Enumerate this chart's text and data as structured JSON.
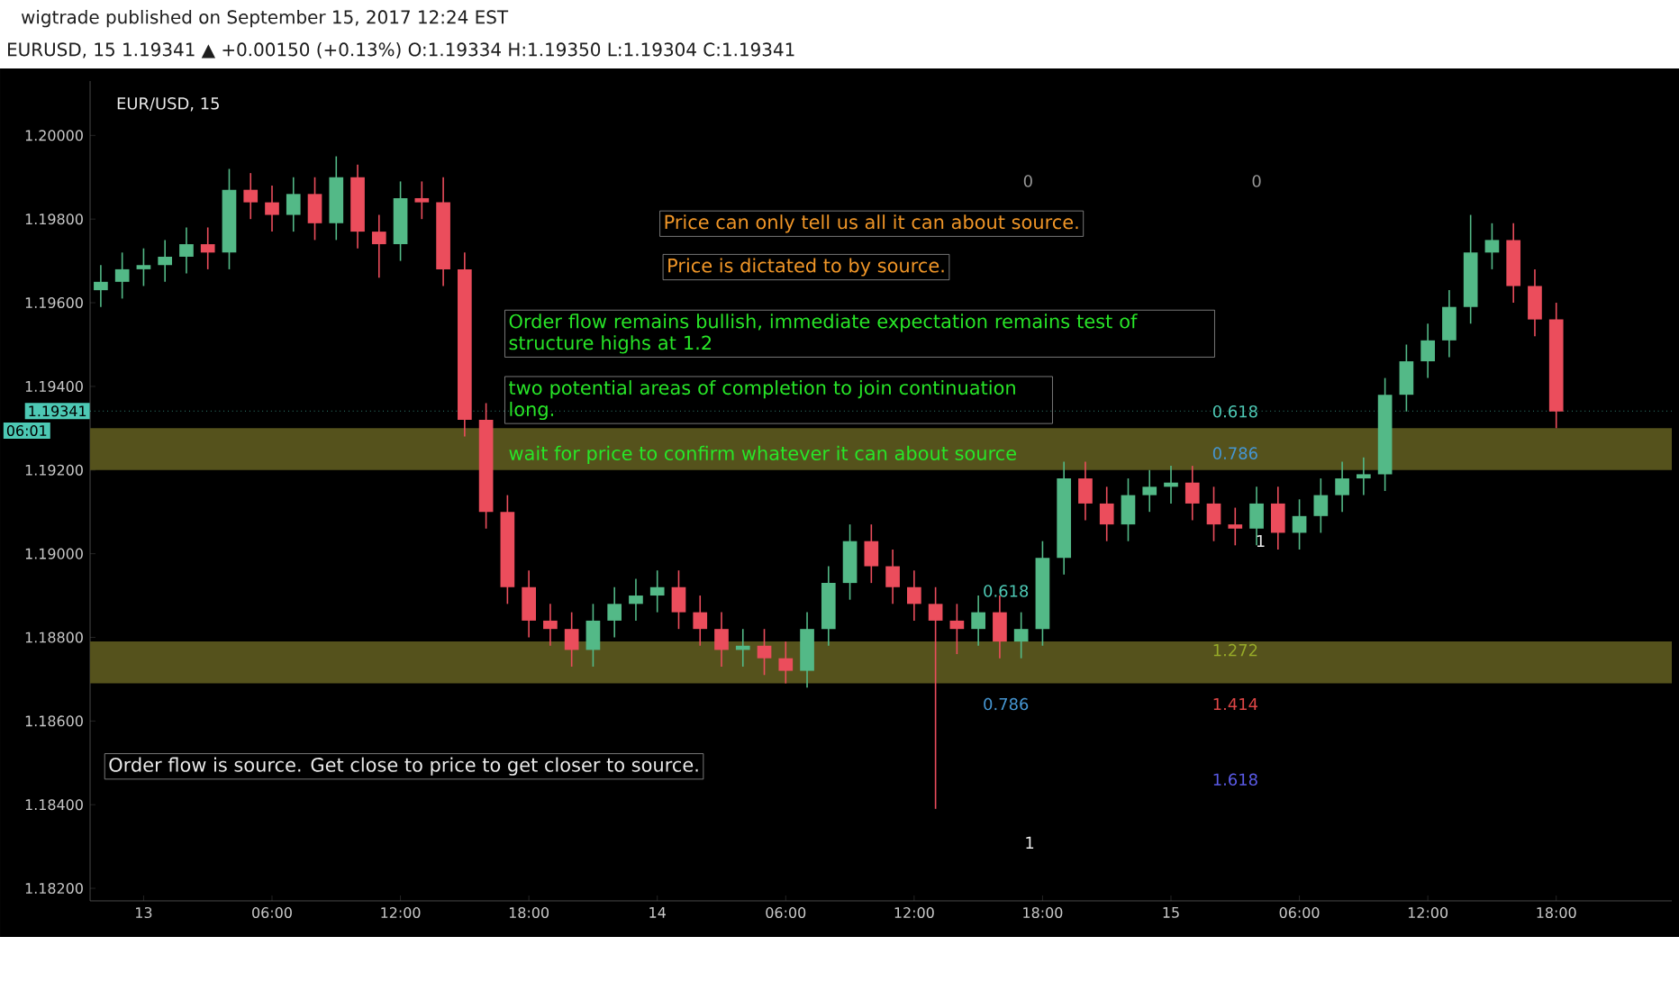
{
  "chart_data": {
    "type": "candlestick",
    "title": "wigtrade published on September 15, 2017 12:24 EST",
    "subtitle": "EURUSD, 15  1.19341 ▲ +0.00150 (+0.13%) O:1.19334 H:1.19350 L:1.19304 C:1.19341",
    "x": [
      "2017-09-12T22:00",
      "2017-09-12T23:00",
      "2017-09-13T00:00",
      "2017-09-13T01:00",
      "2017-09-13T02:00",
      "2017-09-13T03:00",
      "2017-09-13T04:00",
      "2017-09-13T05:00",
      "2017-09-13T06:00",
      "2017-09-13T07:00",
      "2017-09-13T08:00",
      "2017-09-13T09:00",
      "2017-09-13T10:00",
      "2017-09-13T11:00",
      "2017-09-13T12:00",
      "2017-09-13T13:00",
      "2017-09-13T14:00",
      "2017-09-13T15:00",
      "2017-09-13T16:00",
      "2017-09-13T17:00",
      "2017-09-13T18:00",
      "2017-09-13T19:00",
      "2017-09-13T20:00",
      "2017-09-13T21:00",
      "2017-09-13T22:00",
      "2017-09-13T23:00",
      "2017-09-14T00:00",
      "2017-09-14T01:00",
      "2017-09-14T02:00",
      "2017-09-14T03:00",
      "2017-09-14T04:00",
      "2017-09-14T05:00",
      "2017-09-14T06:00",
      "2017-09-14T07:00",
      "2017-09-14T08:00",
      "2017-09-14T09:00",
      "2017-09-14T10:00",
      "2017-09-14T11:00",
      "2017-09-14T12:00",
      "2017-09-14T13:00",
      "2017-09-14T14:00",
      "2017-09-14T15:00",
      "2017-09-14T16:00",
      "2017-09-14T17:00",
      "2017-09-14T18:00",
      "2017-09-14T19:00",
      "2017-09-14T20:00",
      "2017-09-14T21:00",
      "2017-09-14T22:00",
      "2017-09-14T23:00",
      "2017-09-15T00:00",
      "2017-09-15T01:00",
      "2017-09-15T02:00",
      "2017-09-15T03:00",
      "2017-09-15T04:00",
      "2017-09-15T05:00",
      "2017-09-15T06:00",
      "2017-09-15T07:00",
      "2017-09-15T08:00",
      "2017-09-15T09:00",
      "2017-09-15T10:00",
      "2017-09-15T11:00",
      "2017-09-15T12:00",
      "2017-09-15T13:00",
      "2017-09-15T14:00",
      "2017-09-15T15:00",
      "2017-09-15T16:00",
      "2017-09-15T17:00",
      "2017-09-15T18:00"
    ],
    "ohlc": [
      [
        1.1963,
        1.1969,
        1.1959,
        1.1965
      ],
      [
        1.1965,
        1.1972,
        1.1961,
        1.1968
      ],
      [
        1.1968,
        1.1973,
        1.1964,
        1.1969
      ],
      [
        1.1969,
        1.1975,
        1.1965,
        1.1971
      ],
      [
        1.1971,
        1.1978,
        1.1967,
        1.1974
      ],
      [
        1.1974,
        1.1978,
        1.1968,
        1.1972
      ],
      [
        1.1972,
        1.1992,
        1.1968,
        1.1987
      ],
      [
        1.1987,
        1.1991,
        1.198,
        1.1984
      ],
      [
        1.1984,
        1.1988,
        1.1977,
        1.1981
      ],
      [
        1.1981,
        1.199,
        1.1977,
        1.1986
      ],
      [
        1.1986,
        1.199,
        1.1975,
        1.1979
      ],
      [
        1.1979,
        1.1995,
        1.1975,
        1.199
      ],
      [
        1.199,
        1.1993,
        1.1973,
        1.1977
      ],
      [
        1.1977,
        1.1981,
        1.1966,
        1.1974
      ],
      [
        1.1974,
        1.1989,
        1.197,
        1.1985
      ],
      [
        1.1985,
        1.1989,
        1.198,
        1.1984
      ],
      [
        1.1984,
        1.199,
        1.1964,
        1.1968
      ],
      [
        1.1968,
        1.1972,
        1.1928,
        1.1932
      ],
      [
        1.1932,
        1.1936,
        1.1906,
        1.191
      ],
      [
        1.191,
        1.1914,
        1.1888,
        1.1892
      ],
      [
        1.1892,
        1.1896,
        1.188,
        1.1884
      ],
      [
        1.1884,
        1.1888,
        1.1878,
        1.1882
      ],
      [
        1.1882,
        1.1886,
        1.1873,
        1.1877
      ],
      [
        1.1877,
        1.1888,
        1.1873,
        1.1884
      ],
      [
        1.1884,
        1.1892,
        1.188,
        1.1888
      ],
      [
        1.1888,
        1.1894,
        1.1884,
        1.189
      ],
      [
        1.189,
        1.1896,
        1.1886,
        1.1892
      ],
      [
        1.1892,
        1.1896,
        1.1882,
        1.1886
      ],
      [
        1.1886,
        1.189,
        1.1878,
        1.1882
      ],
      [
        1.1882,
        1.1886,
        1.1873,
        1.1877
      ],
      [
        1.1877,
        1.1882,
        1.1873,
        1.1878
      ],
      [
        1.1878,
        1.1882,
        1.1871,
        1.1875
      ],
      [
        1.1875,
        1.1879,
        1.1869,
        1.1872
      ],
      [
        1.1872,
        1.1886,
        1.1868,
        1.1882
      ],
      [
        1.1882,
        1.1897,
        1.1878,
        1.1893
      ],
      [
        1.1893,
        1.1907,
        1.1889,
        1.1903
      ],
      [
        1.1903,
        1.1907,
        1.1893,
        1.1897
      ],
      [
        1.1897,
        1.1901,
        1.1888,
        1.1892
      ],
      [
        1.1892,
        1.1896,
        1.1884,
        1.1888
      ],
      [
        1.1888,
        1.1892,
        1.1839,
        1.1884
      ],
      [
        1.1884,
        1.1888,
        1.1876,
        1.1882
      ],
      [
        1.1882,
        1.189,
        1.1878,
        1.1886
      ],
      [
        1.1886,
        1.189,
        1.1875,
        1.1879
      ],
      [
        1.1879,
        1.1886,
        1.1875,
        1.1882
      ],
      [
        1.1882,
        1.1903,
        1.1878,
        1.1899
      ],
      [
        1.1899,
        1.1922,
        1.1895,
        1.1918
      ],
      [
        1.1918,
        1.1922,
        1.1908,
        1.1912
      ],
      [
        1.1912,
        1.1916,
        1.1903,
        1.1907
      ],
      [
        1.1907,
        1.1918,
        1.1903,
        1.1914
      ],
      [
        1.1914,
        1.192,
        1.191,
        1.1916
      ],
      [
        1.1916,
        1.1921,
        1.1912,
        1.1917
      ],
      [
        1.1917,
        1.1921,
        1.1908,
        1.1912
      ],
      [
        1.1912,
        1.1916,
        1.1903,
        1.1907
      ],
      [
        1.1907,
        1.1911,
        1.1902,
        1.1906
      ],
      [
        1.1906,
        1.1916,
        1.1902,
        1.1912
      ],
      [
        1.1912,
        1.1916,
        1.1901,
        1.1905
      ],
      [
        1.1905,
        1.1913,
        1.1901,
        1.1909
      ],
      [
        1.1909,
        1.1918,
        1.1905,
        1.1914
      ],
      [
        1.1914,
        1.1922,
        1.191,
        1.1918
      ],
      [
        1.1918,
        1.1923,
        1.1914,
        1.1919
      ],
      [
        1.1919,
        1.1942,
        1.1915,
        1.1938
      ],
      [
        1.1938,
        1.195,
        1.1934,
        1.1946
      ],
      [
        1.1946,
        1.1955,
        1.1942,
        1.1951
      ],
      [
        1.1951,
        1.1963,
        1.1947,
        1.1959
      ],
      [
        1.1959,
        1.1981,
        1.1955,
        1.1972
      ],
      [
        1.1972,
        1.1979,
        1.1968,
        1.1975
      ],
      [
        1.1975,
        1.1979,
        1.196,
        1.1964
      ],
      [
        1.1964,
        1.1968,
        1.1952,
        1.1956
      ],
      [
        1.1956,
        1.196,
        1.193,
        1.1934
      ]
    ],
    "xlim": [
      "2017-09-12T21:30",
      "2017-09-15T23:24"
    ],
    "xticks": [
      {
        "value": "2017-09-13T00:00",
        "label": "13"
      },
      {
        "value": "2017-09-13T06:00",
        "label": "06:00"
      },
      {
        "value": "2017-09-13T12:00",
        "label": "12:00"
      },
      {
        "value": "2017-09-13T18:00",
        "label": "18:00"
      },
      {
        "value": "2017-09-14T00:00",
        "label": "14"
      },
      {
        "value": "2017-09-14T06:00",
        "label": "06:00"
      },
      {
        "value": "2017-09-14T12:00",
        "label": "12:00"
      },
      {
        "value": "2017-09-14T18:00",
        "label": "18:00"
      },
      {
        "value": "2017-09-15T00:00",
        "label": "15"
      },
      {
        "value": "2017-09-15T06:00",
        "label": "06:00"
      },
      {
        "value": "2017-09-15T12:00",
        "label": "12:00"
      },
      {
        "value": "2017-09-15T18:00",
        "label": "18:00"
      }
    ],
    "ylim": [
      1.1817,
      1.2013
    ],
    "yticks": [
      {
        "value": 1.182,
        "label": "1.18200"
      },
      {
        "value": 1.184,
        "label": "1.18400"
      },
      {
        "value": 1.186,
        "label": "1.18600"
      },
      {
        "value": 1.188,
        "label": "1.18800"
      },
      {
        "value": 1.19,
        "label": "1.19000"
      },
      {
        "value": 1.192,
        "label": "1.19200"
      },
      {
        "value": 1.194,
        "label": "1.19400"
      },
      {
        "value": 1.196,
        "label": "1.19600"
      },
      {
        "value": 1.198,
        "label": "1.19800"
      },
      {
        "value": 1.2,
        "label": "1.20000"
      }
    ],
    "ref_lines": [
      {
        "axis": "y",
        "value": 1.19341,
        "label": "1.19341",
        "color": "#4dc8b4",
        "line_style": "dotted"
      }
    ],
    "bands": [
      {
        "axis": "y",
        "from": 1.192,
        "to": 1.193,
        "color": "#55521c"
      },
      {
        "axis": "y",
        "from": 1.1869,
        "to": 1.1879,
        "color": "#55521c"
      }
    ],
    "annotations": [
      "EUR/USD, 15",
      "Price can only tell us all it can about source.",
      "Price is dictated to by source.",
      "Order flow remains bullish, immediate expectation remains test of structure highs at 1.2",
      "two potential areas of completion to join continuation long.",
      "wait for price to confirm whatever it can about source",
      "Order flow is source. Get close to price to get closer to source.",
      "06:01",
      "0",
      "0",
      "0.618",
      "0.786",
      "1",
      "0.618",
      "1.272",
      "0.786",
      "1.414",
      "1.618",
      "1"
    ]
  }
}
